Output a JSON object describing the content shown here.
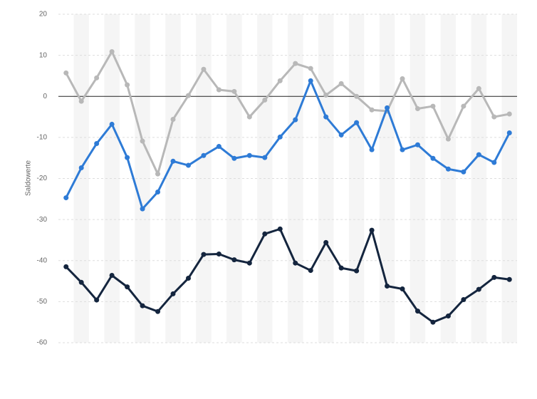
{
  "chart_data": {
    "type": "line",
    "y_label": "Saldowerte",
    "categories": [
      null,
      null,
      null,
      null,
      null,
      null,
      null,
      null,
      null,
      null,
      null,
      null,
      null,
      null,
      null,
      null,
      null,
      null,
      null,
      null,
      null,
      null,
      null,
      null,
      null,
      null,
      null,
      null,
      null,
      null
    ],
    "series": [
      {
        "color": "#b8b8b8",
        "values": [
          5.7,
          -1.2,
          4.5,
          10.9,
          2.8,
          -10.9,
          -18.9,
          -5.6,
          0.2,
          6.6,
          1.6,
          1.2,
          -5.0,
          -0.9,
          3.8,
          8.0,
          6.8,
          0.3,
          3.1,
          0,
          -3.3,
          -3.6,
          4.3,
          -3.0,
          -2.4,
          -10.4,
          -2.4,
          1.9,
          -5.0,
          -4.3
        ]
      },
      {
        "color": "#2e7bd6",
        "values": [
          -24.7,
          -17.4,
          -11.5,
          -6.8,
          -14.9,
          -27.4,
          -23.3,
          -15.8,
          -16.8,
          -14.4,
          -12.2,
          -15.1,
          -14.4,
          -14.9,
          -9.9,
          -5.7,
          3.8,
          -5.0,
          -9.4,
          -6.4,
          -13.0,
          -2.8,
          -13.0,
          -11.8,
          -15.1,
          -17.7,
          -18.4,
          -14.2,
          -16.1,
          -8.9
        ]
      },
      {
        "color": "#14253e",
        "values": [
          -41.5,
          -45.3,
          -49.6,
          -43.6,
          -46.4,
          -51.0,
          -52.4,
          -48.1,
          -44.3,
          -38.5,
          -38.4,
          -39.8,
          -40.6,
          -33.5,
          -32.3,
          -40.6,
          -42.4,
          -35.6,
          -41.8,
          -42.5,
          -32.6,
          -46.2,
          -46.9,
          -52.3,
          -55.0,
          -53.5,
          -49.5,
          -47.0,
          -44.1,
          -44.6
        ]
      }
    ],
    "ylim": [
      -60,
      20
    ],
    "yticks": [
      -60,
      -50,
      -40,
      -30,
      -20,
      -10,
      0,
      10,
      20
    ],
    "grid": true
  }
}
